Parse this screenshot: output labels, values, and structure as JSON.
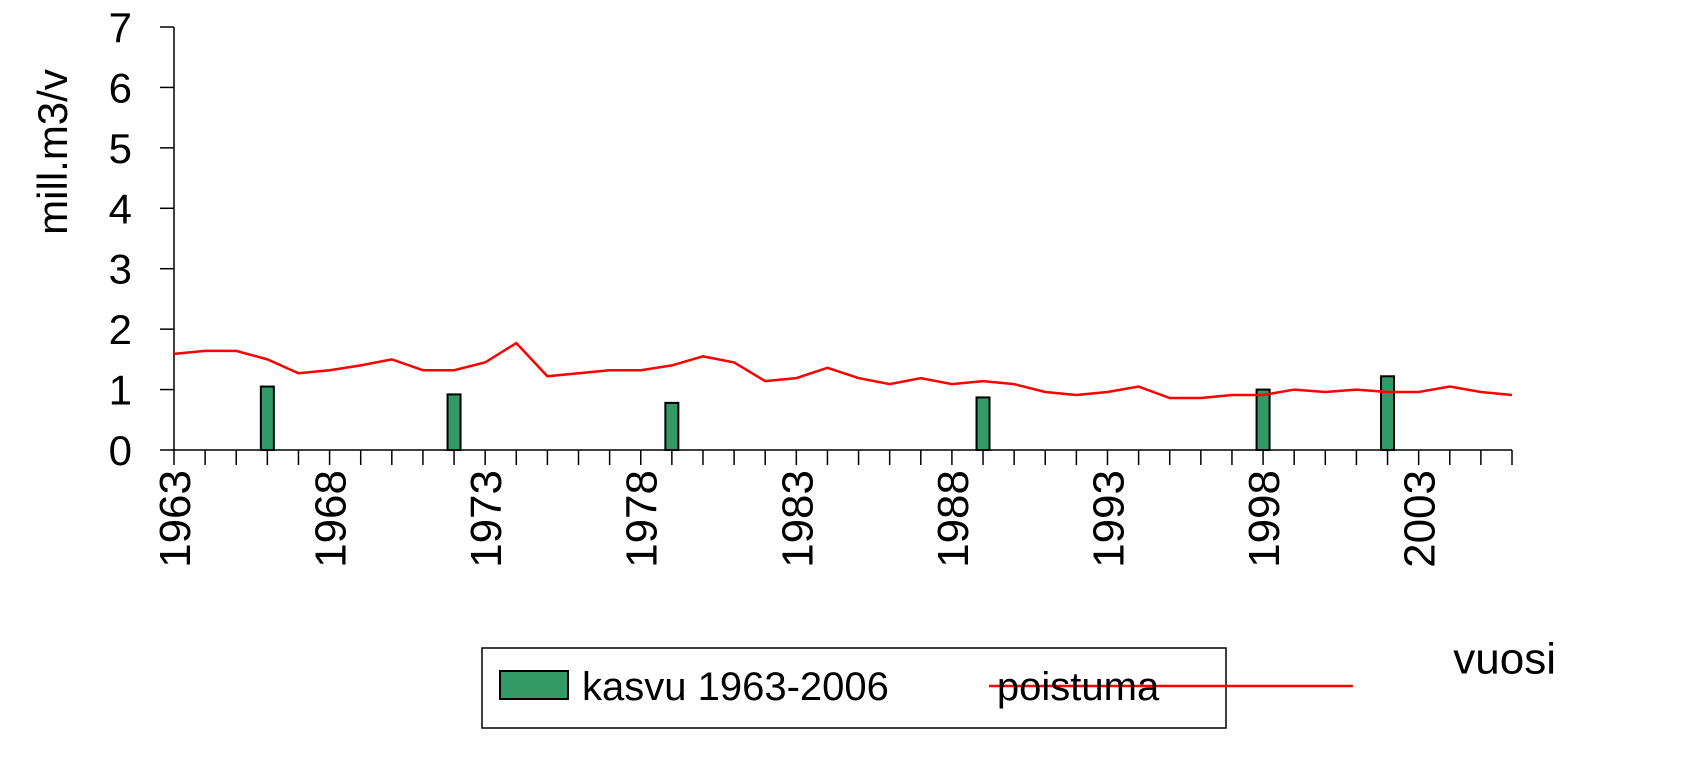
{
  "chart_data": {
    "type": "bar+line",
    "y_label": "mill.m3/v",
    "x_label": "vuosi",
    "x": [
      1963,
      1964,
      1965,
      1966,
      1967,
      1968,
      1969,
      1970,
      1971,
      1972,
      1973,
      1974,
      1975,
      1976,
      1977,
      1978,
      1979,
      1980,
      1981,
      1982,
      1983,
      1984,
      1985,
      1986,
      1987,
      1988,
      1989,
      1990,
      1991,
      1992,
      1993,
      1994,
      1995,
      1996,
      1997,
      1998,
      1999,
      2000,
      2001,
      2002,
      2003,
      2004,
      2005,
      2006
    ],
    "xlim": [
      1963,
      2006
    ],
    "xticks": [
      1963,
      1968,
      1973,
      1978,
      1983,
      1988,
      1993,
      1998,
      2003
    ],
    "ylim": [
      0,
      7
    ],
    "yticks": [
      0,
      1,
      2,
      3,
      4,
      5,
      6,
      7
    ],
    "series": [
      {
        "name": "kasvu 1963-2006",
        "type": "bar",
        "color": "#339966",
        "values": [
          null,
          null,
          null,
          1.05,
          null,
          null,
          null,
          null,
          null,
          0.92,
          null,
          null,
          null,
          null,
          null,
          null,
          0.78,
          null,
          null,
          null,
          null,
          null,
          null,
          null,
          null,
          null,
          0.87,
          null,
          null,
          null,
          null,
          null,
          null,
          null,
          null,
          1.0,
          null,
          null,
          null,
          1.22,
          null,
          null,
          null,
          null
        ]
      },
      {
        "name": "poistuma",
        "type": "line",
        "color": "#ff0000",
        "values": [
          1.59,
          1.64,
          1.64,
          1.5,
          1.27,
          1.32,
          1.4,
          1.5,
          1.32,
          1.32,
          1.45,
          1.77,
          1.22,
          1.27,
          1.32,
          1.32,
          1.4,
          1.55,
          1.45,
          1.14,
          1.19,
          1.36,
          1.19,
          1.09,
          1.19,
          1.09,
          1.14,
          1.09,
          0.96,
          0.91,
          0.96,
          1.05,
          0.86,
          0.86,
          0.91,
          0.91,
          1.0,
          0.96,
          1.0,
          0.96,
          0.96,
          1.05,
          0.96,
          0.91
        ]
      }
    ]
  }
}
